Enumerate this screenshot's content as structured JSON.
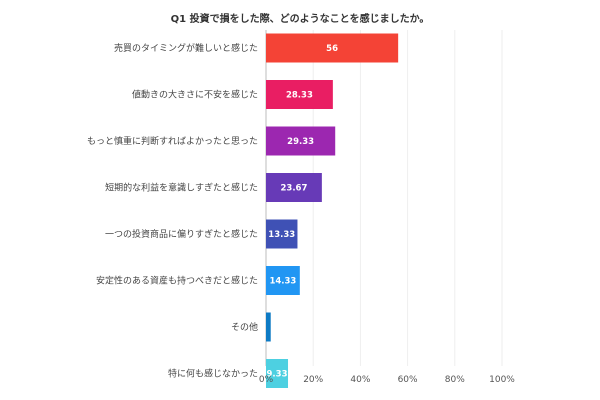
{
  "chart_data": {
    "type": "bar",
    "orientation": "horizontal",
    "title": "Q1 投資で損をした際、どのようなことを感じましたか。",
    "categories": [
      "売買のタイミングが難しいと感じた",
      "値動きの大きさに不安を感じた",
      "もっと慎重に判断すればよかったと思った",
      "短期的な利益を意識しすぎたと感じた",
      "一つの投資商品に偏りすぎたと感じた",
      "安定性のある資産も持つべきだと感じた",
      "その他",
      "特に何も感じなかった"
    ],
    "values": [
      56,
      28.33,
      29.33,
      23.67,
      13.33,
      14.33,
      2,
      9.33
    ],
    "value_labels": [
      "56",
      "28.33",
      "29.33",
      "23.67",
      "13.33",
      "14.33",
      "",
      "9.33"
    ],
    "colors": [
      "#f44336",
      "#e91e63",
      "#9c27b0",
      "#673ab7",
      "#3f51b5",
      "#2196f3",
      "#0d7ac4",
      "#4dd0e1"
    ],
    "xlim": [
      0,
      100
    ],
    "xticks": [
      0,
      20,
      40,
      60,
      80,
      100
    ],
    "xtick_labels": [
      "0%",
      "20%",
      "40%",
      "60%",
      "80%",
      "100%"
    ],
    "grid": true,
    "xlabel": "",
    "ylabel": ""
  }
}
